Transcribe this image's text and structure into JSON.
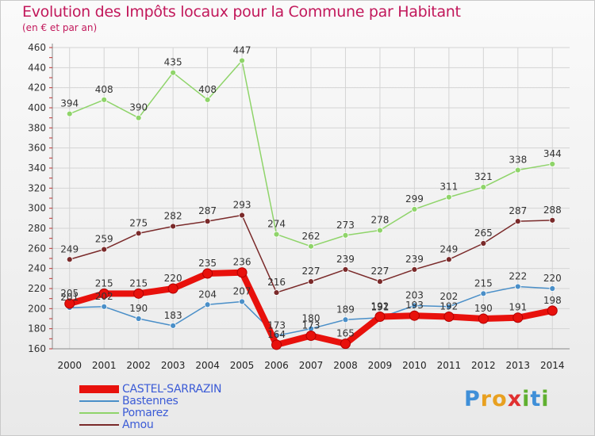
{
  "title": "Evolution des Impôts locaux pour la Commune par Habitant",
  "subtitle": "(en € et par an)",
  "logo": {
    "letters": [
      "P",
      "r",
      "o",
      "x",
      "i",
      "t",
      "i"
    ],
    "colors": [
      "#3f8fd8",
      "#e8a020",
      "#e8a020",
      "#e03030",
      "#60b030",
      "#3f8fd8",
      "#60b030"
    ]
  },
  "chart_data": {
    "type": "line",
    "title": "Evolution des Impôts locaux pour la Commune par Habitant",
    "subtitle": "(en € et par an)",
    "xlabel": "",
    "ylabel": "",
    "categories": [
      "2000",
      "2001",
      "2002",
      "2003",
      "2004",
      "2005",
      "2006",
      "2007",
      "2008",
      "2009",
      "2010",
      "2011",
      "2012",
      "2013",
      "2014"
    ],
    "ylim": [
      160,
      460
    ],
    "yticks": [
      160,
      180,
      200,
      220,
      240,
      260,
      280,
      300,
      320,
      340,
      360,
      380,
      400,
      420,
      440,
      460
    ],
    "grid": true,
    "legend_position": "bottom-left",
    "series": [
      {
        "name": "CASTEL-SARRAZIN",
        "color": "#e8110c",
        "values": [
          205,
          215,
          215,
          220,
          235,
          236,
          164,
          173,
          165,
          192,
          193,
          192,
          190,
          191,
          198
        ],
        "labels": [
          "205",
          "215",
          "215",
          "220",
          "235",
          "236",
          "164",
          "173",
          "165",
          "192",
          "193",
          "192",
          "190",
          "191",
          "198"
        ]
      },
      {
        "name": "Bastennes",
        "color": "#4a8fc8",
        "values": [
          201,
          202,
          190,
          183,
          204,
          207,
          173,
          180,
          189,
          191,
          203,
          202,
          215,
          222,
          220
        ],
        "labels": [
          "201",
          "202",
          "190",
          "183",
          "204",
          "207",
          "173",
          "180",
          "189",
          "191",
          "203",
          "202",
          "215",
          "222",
          "220"
        ]
      },
      {
        "name": "Pomarez",
        "color": "#8fd46a",
        "values": [
          394,
          408,
          390,
          435,
          408,
          447,
          274,
          262,
          273,
          278,
          299,
          311,
          321,
          338,
          344
        ],
        "labels": [
          "394",
          "408",
          "390",
          "435",
          "408",
          "447",
          "274",
          "262",
          "273",
          "278",
          "299",
          "311",
          "321",
          "338",
          "344"
        ]
      },
      {
        "name": "Amou",
        "color": "#7a2a2a",
        "values": [
          249,
          259,
          275,
          282,
          287,
          293,
          216,
          227,
          239,
          227,
          239,
          249,
          265,
          287,
          288
        ],
        "labels": [
          "249",
          "259",
          "275",
          "282",
          "287",
          "293",
          "216",
          "227",
          "239",
          "227",
          "239",
          "249",
          "265",
          "287",
          "288"
        ]
      }
    ]
  }
}
